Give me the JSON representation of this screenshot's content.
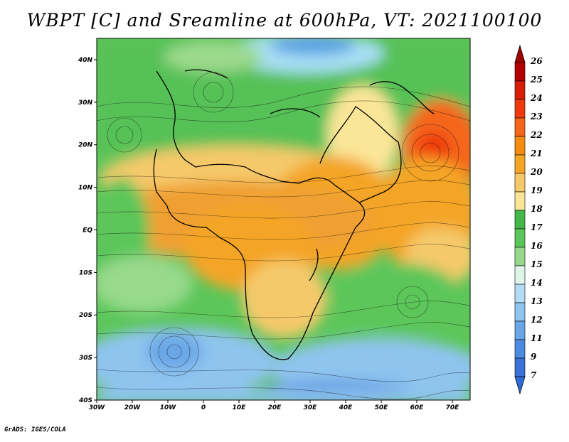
{
  "title": "WBPT [C] and Sreamline at 600hPa, VT: 2021100100",
  "credit": "GrADS: IGES/COLA",
  "map": {
    "lat_labels": [
      "40N",
      "30N",
      "20N",
      "10N",
      "EQ",
      "10S",
      "20S",
      "30S",
      "40S"
    ],
    "lon_labels": [
      "30W",
      "20W",
      "10W",
      "0",
      "10E",
      "20E",
      "30E",
      "40E",
      "50E",
      "60E",
      "70E"
    ],
    "lat_values": [
      40,
      30,
      20,
      10,
      0,
      -10,
      -20,
      -30,
      -40
    ],
    "lon_values": [
      -30,
      -20,
      -10,
      0,
      10,
      20,
      30,
      40,
      50,
      60,
      70
    ],
    "lon_range": [
      -30,
      75
    ],
    "lat_range": [
      -40,
      45
    ]
  },
  "colorbar": {
    "labels": [
      "26",
      "25",
      "24",
      "23",
      "22",
      "21",
      "20",
      "19",
      "18",
      "17",
      "16",
      "15",
      "14",
      "13",
      "12",
      "11",
      "9",
      "7"
    ],
    "colors": [
      "#b40000",
      "#d81e06",
      "#ef3a0e",
      "#f5661a",
      "#f58c12",
      "#f4a526",
      "#f5c96a",
      "#fbe698",
      "#44b64a",
      "#5cc65a",
      "#98d98c",
      "#dff5ea",
      "#b3dcf4",
      "#8ec4ee",
      "#6aa7e7",
      "#4d8be0",
      "#3a72d8"
    ],
    "top_color": "#a00000",
    "bottom_color": "#2e6bd6"
  }
}
